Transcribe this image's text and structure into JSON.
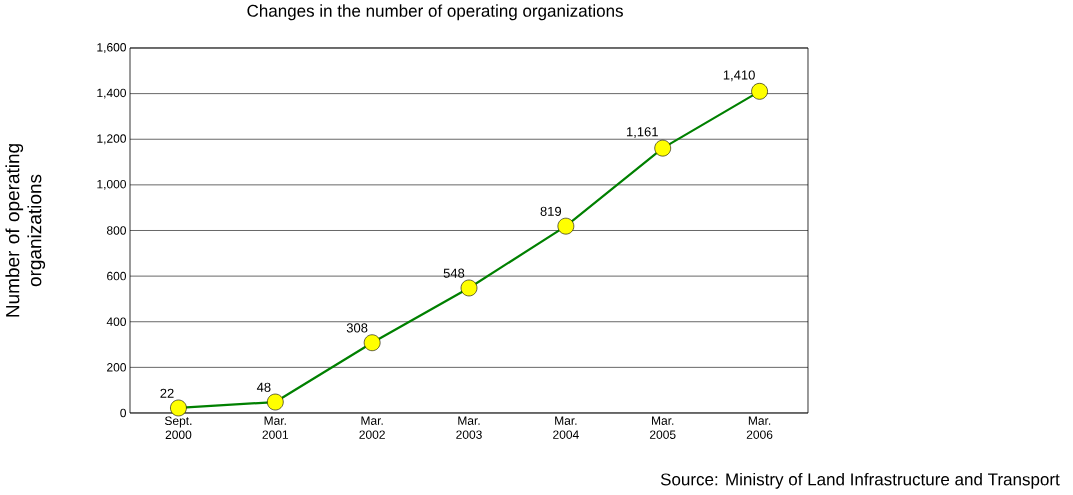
{
  "chart_data": {
    "type": "line",
    "title": "Changes in the number of operating organizations",
    "ylabel": "Number of operating organizations",
    "categories": [
      "Sept. 2000",
      "Mar. 2001",
      "Mar. 2002",
      "Mar. 2003",
      "Mar. 2004",
      "Mar. 2005",
      "Mar. 2006"
    ],
    "series": [
      {
        "color": "#008000",
        "values": [
          22,
          48,
          308,
          548,
          819,
          1161,
          1410
        ],
        "value_labels": [
          "22",
          "48",
          "308",
          "548",
          "819",
          "1,161",
          "1,410"
        ]
      }
    ],
    "ylim": [
      0,
      1600
    ],
    "yticks": [
      0,
      200,
      400,
      600,
      800,
      {
        "value": 1000,
        "label": "1,000"
      },
      {
        "value": 1200,
        "label": "1,200"
      },
      {
        "value": 1400,
        "label": "1,400"
      },
      {
        "value": 1600,
        "label": "1,600"
      }
    ],
    "grid": "y",
    "marker": "circle",
    "line_style": "solid",
    "annotations": [
      "Source: Ministry of Land Infrastructure and Transport"
    ]
  }
}
